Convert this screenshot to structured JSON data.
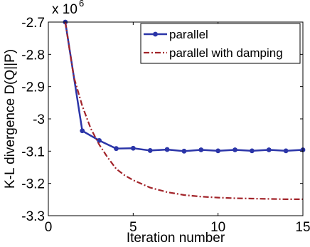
{
  "chart_data": {
    "type": "line",
    "title": "",
    "xlabel": "Iteration number",
    "ylabel": "K-L divergence D(Q||P)",
    "xlim": [
      0,
      15
    ],
    "ylim": [
      -3.3,
      -2.7
    ],
    "y_multiplier_label": {
      "base": "x 10",
      "exponent": "6"
    },
    "x_ticks": [
      0,
      5,
      10,
      15
    ],
    "x_tick_labels": [
      "0",
      "5",
      "10",
      "15"
    ],
    "y_ticks": [
      -2.7,
      -2.8,
      -2.9,
      -3.0,
      -3.1,
      -3.2,
      -3.3
    ],
    "y_tick_labels": [
      "-2.7",
      "-2.8",
      "-2.9",
      "-3",
      "-3.1",
      "-3.2",
      "-3.3"
    ],
    "grid": false,
    "legend_position": "top-right",
    "series": [
      {
        "name": "parallel",
        "color": "#2b35a8",
        "style": "solid-with-markers",
        "x": [
          1,
          2,
          3,
          4,
          5,
          6,
          7,
          8,
          9,
          10,
          11,
          12,
          13,
          14,
          15
        ],
        "y": [
          -2.7,
          -3.037,
          -3.067,
          -3.092,
          -3.091,
          -3.098,
          -3.095,
          -3.1,
          -3.096,
          -3.099,
          -3.096,
          -3.099,
          -3.096,
          -3.099,
          -3.096
        ]
      },
      {
        "name": "parallel with damping",
        "color": "#a2242a",
        "style": "dash-dot",
        "x": [
          1,
          1.5,
          2,
          2.5,
          3,
          3.5,
          4,
          4.5,
          5,
          6,
          7,
          8,
          9,
          10,
          11,
          12,
          13,
          14,
          15
        ],
        "y": [
          -2.7,
          -2.87,
          -2.96,
          -3.03,
          -3.08,
          -3.12,
          -3.155,
          -3.175,
          -3.19,
          -3.213,
          -3.227,
          -3.236,
          -3.241,
          -3.244,
          -3.246,
          -3.247,
          -3.248,
          -3.249,
          -3.249
        ]
      }
    ]
  }
}
